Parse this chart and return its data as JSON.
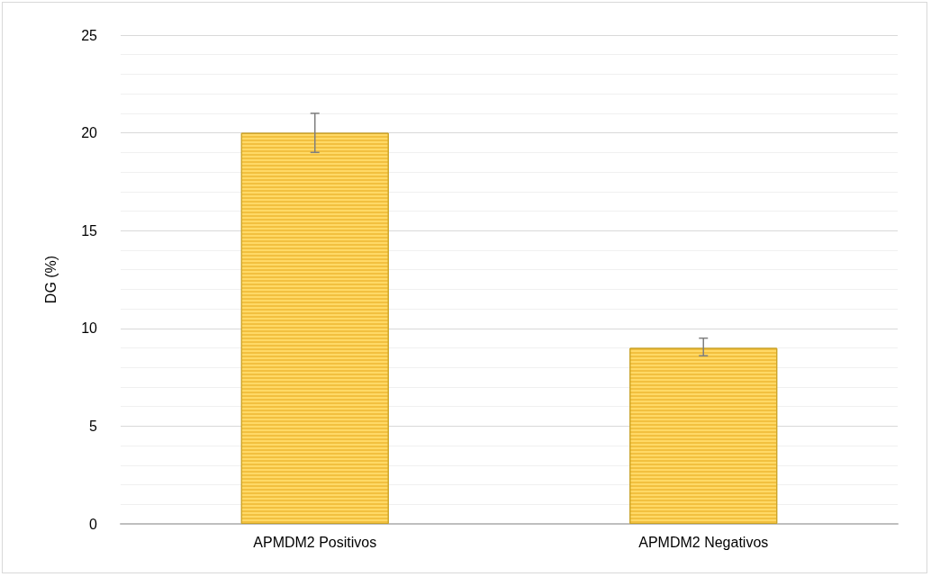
{
  "chart_data": {
    "type": "bar",
    "ylabel": "DG (%)",
    "categories": [
      "APMDM2 Positivos",
      "APMDM2 Negativos"
    ],
    "values": [
      20,
      9
    ],
    "errors": [
      1,
      [
        8.6,
        9.5
      ]
    ],
    "color": "#ffd966",
    "ylim": [
      0,
      25
    ],
    "yticks": [
      0,
      5,
      10,
      15,
      20,
      25
    ],
    "grid": "y"
  }
}
